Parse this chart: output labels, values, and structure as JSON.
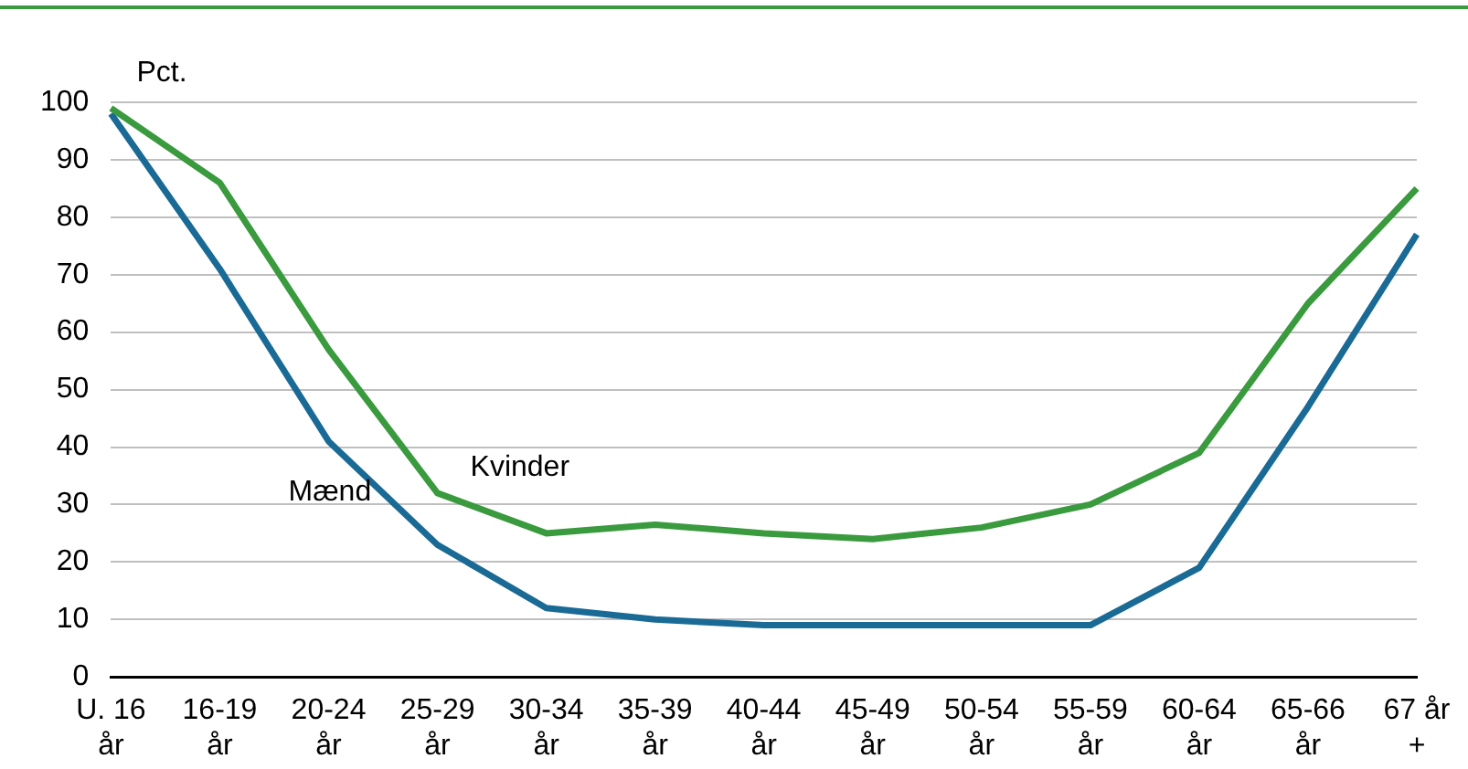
{
  "chart_data": {
    "type": "line",
    "ylabel": "Pct.",
    "categories": [
      "U. 16\når",
      "16-19\når",
      "20-24\når",
      "25-29\når",
      "30-34\når",
      "35-39\når",
      "40-44\når",
      "45-49\når",
      "50-54\når",
      "55-59\når",
      "60-64\når",
      "65-66\når",
      "67 år\n+"
    ],
    "series": [
      {
        "name": "Kvinder",
        "color": "#3a9a3e",
        "values": [
          99,
          86,
          57,
          32,
          25,
          26.5,
          25,
          24,
          26,
          30,
          39,
          65,
          85
        ]
      },
      {
        "name": "Mænd",
        "color": "#1a6a96",
        "values": [
          98,
          71,
          41,
          23,
          12,
          10,
          9,
          9,
          9,
          9,
          19,
          47,
          77
        ]
      }
    ],
    "ylim": [
      0,
      100
    ],
    "yticks": [
      0,
      10,
      20,
      30,
      40,
      50,
      60,
      70,
      80,
      90,
      100
    ],
    "grid": "y",
    "legend": false,
    "marker": "none",
    "line_style": "solid"
  }
}
